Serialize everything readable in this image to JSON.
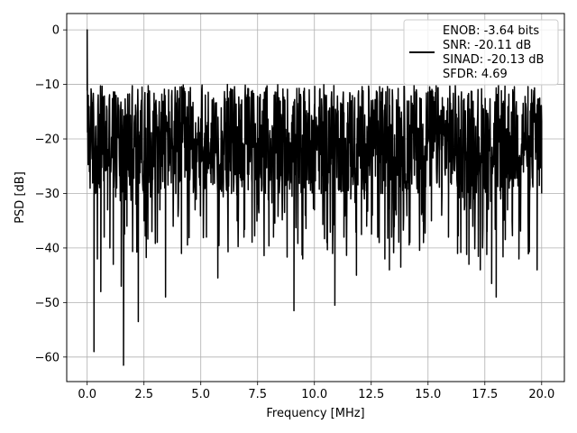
{
  "chart_data": {
    "type": "line",
    "title": "",
    "xlabel": "Frequency [MHz]",
    "ylabel": "PSD [dB]",
    "xlim": [
      -0.9,
      21.0
    ],
    "ylim": [
      -64.5,
      3.0
    ],
    "xticks": [
      0.0,
      2.5,
      5.0,
      7.5,
      10.0,
      12.5,
      15.0,
      17.5,
      20.0
    ],
    "xtick_labels": [
      "0.0",
      "2.5",
      "5.0",
      "7.5",
      "10.0",
      "12.5",
      "15.0",
      "17.5",
      "20.0"
    ],
    "yticks": [
      0,
      -10,
      -20,
      -30,
      -40,
      -50,
      -60
    ],
    "ytick_labels": [
      "0",
      "−10",
      "−20",
      "−30",
      "−40",
      "−50",
      "−60"
    ],
    "grid": true,
    "legend_position": "top-right",
    "series": [
      {
        "name": "ENOB: -3.64 bits\nSNR: -20.11 dB\nSINAD: -20.13 dB\nSFDR: 4.69",
        "color": "#000000",
        "x_range": [
          0.0,
          20.0
        ],
        "noise_floor_db": -20.5,
        "noise_band_db": [
          -30,
          -10
        ],
        "approximate": true,
        "points": [
          [
            0.0,
            0.0
          ],
          [
            0.05,
            -12
          ],
          [
            0.1,
            -26
          ],
          [
            0.2,
            -20
          ],
          [
            0.3,
            -59
          ],
          [
            0.35,
            -30
          ],
          [
            0.45,
            -42
          ],
          [
            0.6,
            -48
          ],
          [
            0.75,
            -38
          ],
          [
            0.9,
            -33
          ],
          [
            1.0,
            -40
          ],
          [
            1.15,
            -43
          ],
          [
            1.3,
            -29
          ],
          [
            1.5,
            -47
          ],
          [
            1.6,
            -61.5
          ],
          [
            1.75,
            -36
          ],
          [
            2.0,
            -39
          ],
          [
            2.15,
            -32
          ],
          [
            2.25,
            -53.5
          ],
          [
            2.5,
            -35
          ],
          [
            2.7,
            -28
          ],
          [
            2.85,
            -37
          ],
          [
            3.0,
            -24
          ],
          [
            3.2,
            -33
          ],
          [
            3.45,
            -49
          ],
          [
            3.6,
            -24
          ],
          [
            3.9,
            -30
          ],
          [
            4.15,
            -41
          ],
          [
            4.3,
            -27
          ],
          [
            4.5,
            -19
          ],
          [
            4.75,
            -33
          ],
          [
            5.0,
            -22
          ],
          [
            5.25,
            -38
          ],
          [
            5.45,
            -28
          ],
          [
            5.75,
            -45.5
          ],
          [
            6.0,
            -23
          ],
          [
            6.35,
            -30
          ],
          [
            6.5,
            -26
          ],
          [
            6.6,
            -35
          ],
          [
            6.9,
            -38
          ],
          [
            7.1,
            -17
          ],
          [
            7.25,
            -28
          ],
          [
            7.5,
            -32
          ],
          [
            7.7,
            -24
          ],
          [
            8.0,
            -30
          ],
          [
            8.2,
            -38
          ],
          [
            8.5,
            -22
          ],
          [
            8.8,
            -33
          ],
          [
            9.1,
            -51.5
          ],
          [
            9.3,
            -27
          ],
          [
            9.6,
            -34
          ],
          [
            9.8,
            -22
          ],
          [
            10.0,
            -33
          ],
          [
            10.3,
            -30
          ],
          [
            10.55,
            -39
          ],
          [
            10.8,
            -41
          ],
          [
            10.9,
            -50.5
          ],
          [
            11.1,
            -28
          ],
          [
            11.3,
            -38
          ],
          [
            11.6,
            -31
          ],
          [
            11.85,
            -45
          ],
          [
            12.0,
            -22
          ],
          [
            12.3,
            -36
          ],
          [
            12.55,
            -34
          ],
          [
            12.85,
            -39
          ],
          [
            13.0,
            -30
          ],
          [
            13.1,
            -42
          ],
          [
            13.3,
            -44
          ],
          [
            13.4,
            -38
          ],
          [
            13.55,
            -33
          ],
          [
            13.8,
            -43.5
          ],
          [
            14.0,
            -29
          ],
          [
            14.2,
            -39
          ],
          [
            14.5,
            -26
          ],
          [
            14.8,
            -39
          ],
          [
            15.0,
            -20
          ],
          [
            15.15,
            -35
          ],
          [
            15.4,
            -28
          ],
          [
            15.6,
            -34
          ],
          [
            15.9,
            -38
          ],
          [
            16.0,
            -28
          ],
          [
            16.3,
            -41
          ],
          [
            16.6,
            -33
          ],
          [
            16.8,
            -43
          ],
          [
            17.0,
            -31
          ],
          [
            17.3,
            -44
          ],
          [
            17.5,
            -28
          ],
          [
            17.6,
            -37
          ],
          [
            17.8,
            -46.5
          ],
          [
            18.0,
            -49
          ],
          [
            18.2,
            -31
          ],
          [
            18.5,
            -33
          ],
          [
            18.7,
            -35
          ],
          [
            19.0,
            -42
          ],
          [
            19.2,
            -25
          ],
          [
            19.4,
            -33
          ],
          [
            19.6,
            -28
          ],
          [
            19.8,
            -44
          ],
          [
            20.0,
            -30
          ]
        ]
      }
    ]
  }
}
